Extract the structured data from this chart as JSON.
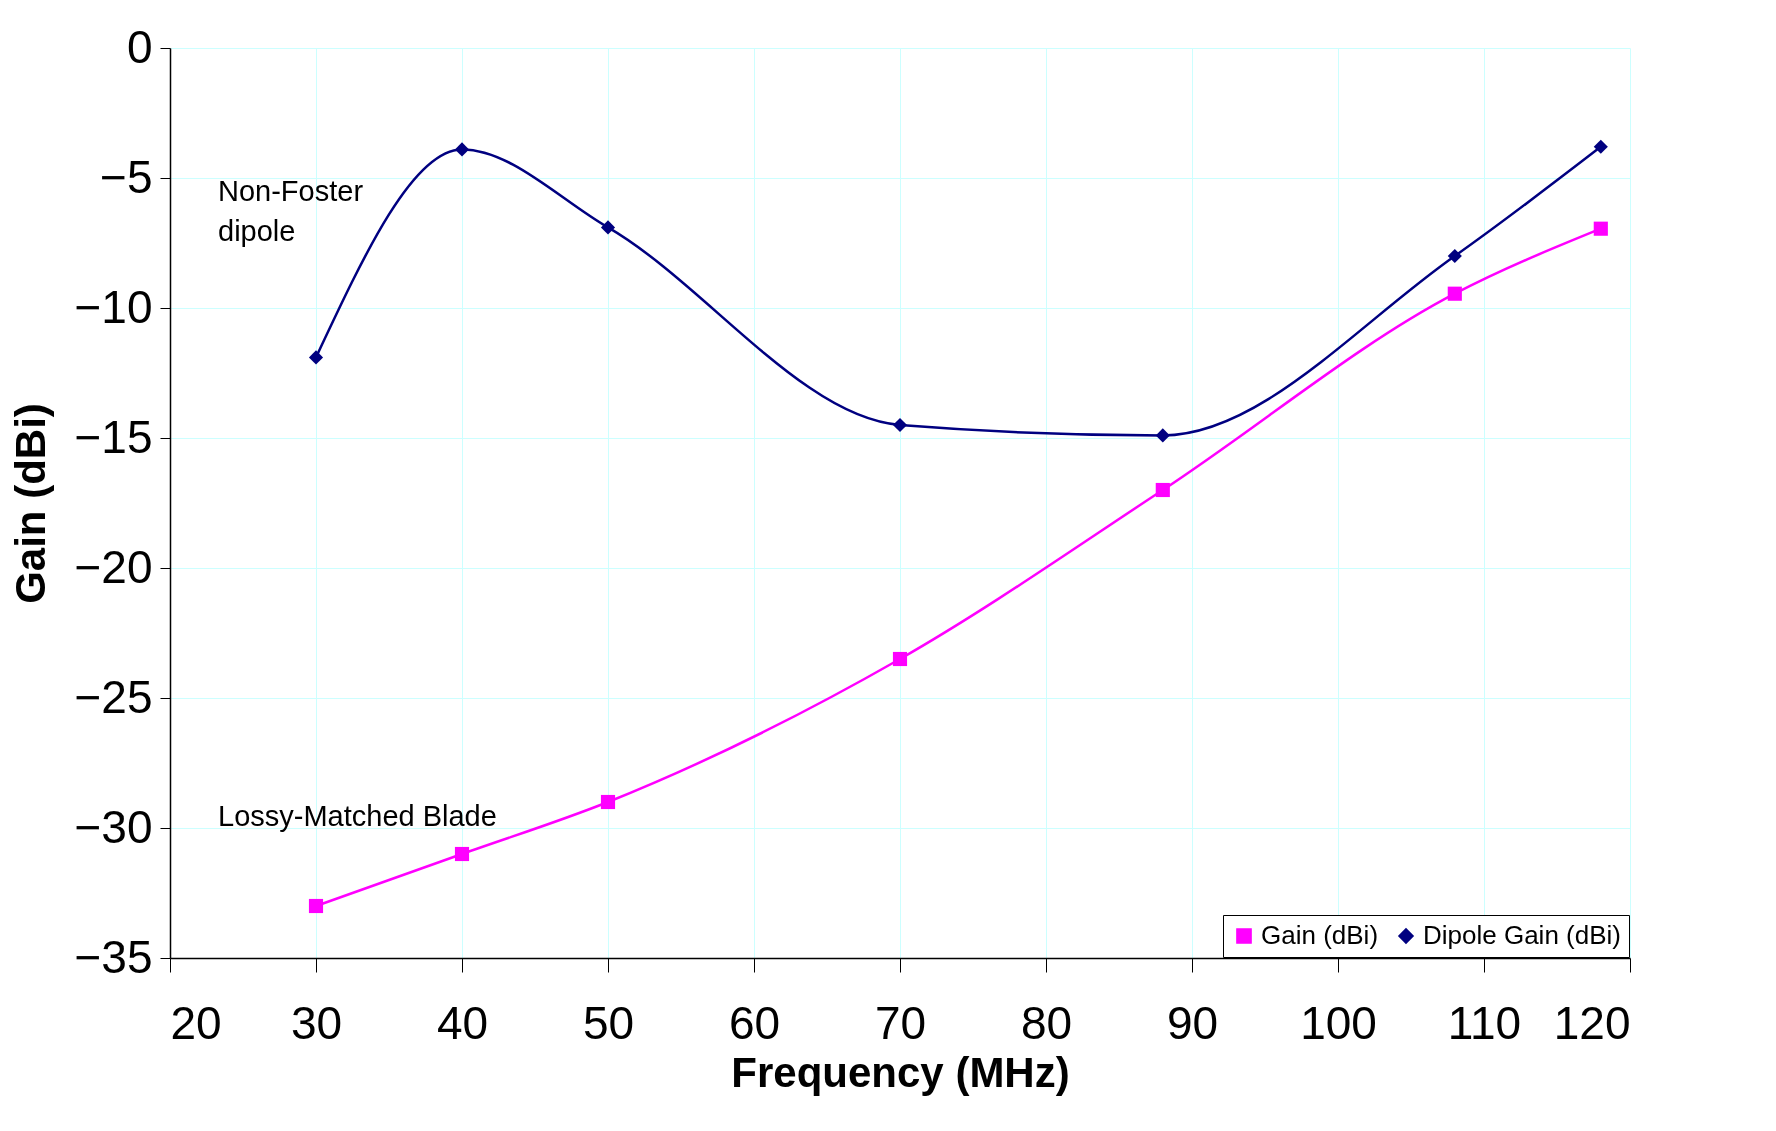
{
  "chart_data": {
    "type": "line",
    "xlabel": "Frequency  (MHz)",
    "ylabel": "Gain  (dBi)",
    "xlim": [
      20,
      120
    ],
    "xticks": [
      20,
      30,
      40,
      50,
      60,
      70,
      80,
      90,
      100,
      110,
      120
    ],
    "ylim": [
      -35,
      0
    ],
    "yticks": [
      -35,
      -30,
      -25,
      -20,
      -15,
      -10,
      -5,
      0
    ],
    "grid": true,
    "legend": "bottom right",
    "series": [
      {
        "name": "Gain (dBi)",
        "color": "#ff00ff",
        "marker": "square",
        "x": [
          30,
          40,
          50,
          70,
          88,
          108,
          118
        ],
        "values": [
          -33,
          -31,
          -29,
          -23.5,
          -17,
          -9.45,
          -6.95
        ]
      },
      {
        "name": "Dipole Gain (dBi)",
        "color": "#000080",
        "marker": "diamond",
        "x": [
          30,
          40,
          50,
          70,
          88,
          108,
          118
        ],
        "values": [
          -11.9,
          -3.9,
          -6.9,
          -14.5,
          -14.9,
          -8.0,
          -3.8
        ]
      }
    ],
    "annotations": [
      "Non-Foster\ndipole",
      "Lossy-Matched Blade"
    ]
  }
}
